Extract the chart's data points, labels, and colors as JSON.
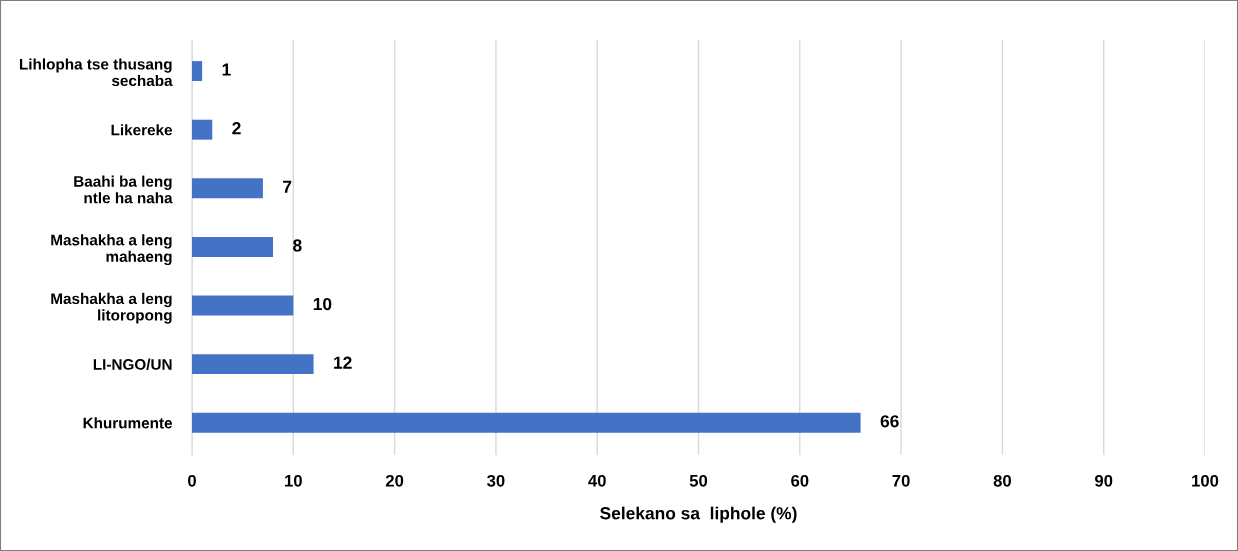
{
  "chart_data": {
    "type": "bar",
    "orientation": "horizontal",
    "categories": [
      "Lihlopha tse thusang\nsechaba",
      "Likereke",
      "Baahi ba leng\nntle ha naha",
      "Mashakha a leng\nmahaeng",
      "Mashakha a leng\nlitoropong",
      "LI-NGO/UN",
      "Khurumente"
    ],
    "values": [
      1,
      2,
      7,
      8,
      10,
      12,
      66
    ],
    "color": "#4472c4",
    "xlabel": "Selekano sa  liphole (%)",
    "xlim": [
      0,
      100
    ],
    "xticks": [
      0,
      10,
      20,
      30,
      40,
      50,
      60,
      70,
      80,
      90,
      100
    ],
    "grid": "x",
    "data_labels": true
  }
}
